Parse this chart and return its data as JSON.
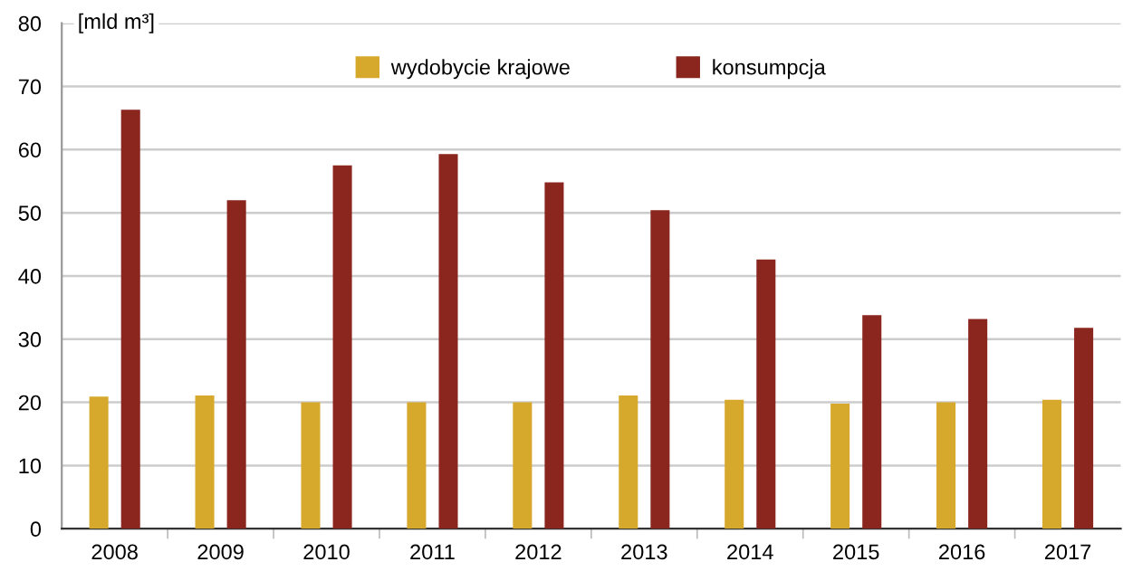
{
  "chart_data": {
    "type": "bar",
    "ylabel": "[mld m³]",
    "categories": [
      "2008",
      "2009",
      "2010",
      "2011",
      "2012",
      "2013",
      "2014",
      "2015",
      "2016",
      "2017"
    ],
    "series": [
      {
        "name": "wydobycie krajowe",
        "color": "#d6a82b",
        "values": [
          20.9,
          21.1,
          20.0,
          20.0,
          20.0,
          21.1,
          20.4,
          19.8,
          20.0,
          20.4
        ]
      },
      {
        "name": "konsumpcja",
        "color": "#8b261e",
        "values": [
          66.3,
          52.0,
          57.5,
          59.3,
          54.8,
          50.4,
          42.6,
          33.8,
          33.2,
          31.8
        ]
      }
    ],
    "ylim": [
      0,
      80
    ],
    "yticks": [
      0,
      10,
      20,
      30,
      40,
      50,
      60,
      70,
      80
    ],
    "grid": "y",
    "legend": "top"
  }
}
